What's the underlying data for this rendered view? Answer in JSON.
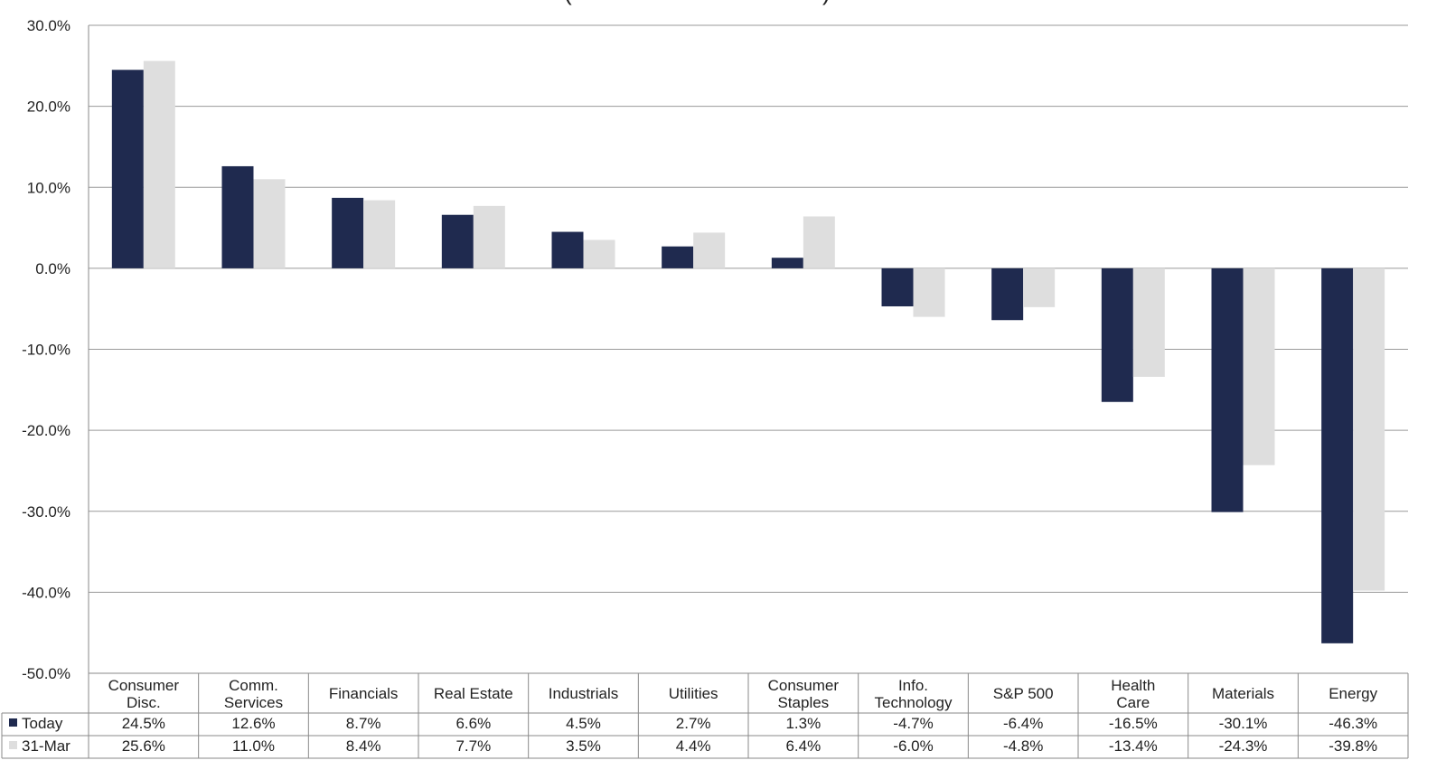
{
  "chart_data": {
    "type": "bar",
    "title": "",
    "xlabel": "",
    "ylabel": "",
    "ylim": [
      -50,
      30
    ],
    "yticks": [
      30,
      20,
      10,
      0,
      -10,
      -20,
      -30,
      -40,
      -50
    ],
    "ytick_labels": [
      "30.0%",
      "20.0%",
      "10.0%",
      "0.0%",
      "-10.0%",
      "-20.0%",
      "-30.0%",
      "-40.0%",
      "-50.0%"
    ],
    "grid": "horizontal",
    "legend": "table-left",
    "categories": [
      [
        "Consumer",
        "Disc."
      ],
      [
        "Comm.",
        "Services"
      ],
      [
        "Financials"
      ],
      [
        "Real Estate"
      ],
      [
        "Industrials"
      ],
      [
        "Utilities"
      ],
      [
        "Consumer",
        "Staples"
      ],
      [
        "Info.",
        "Technology"
      ],
      [
        "S&P 500"
      ],
      [
        "Health",
        "Care"
      ],
      [
        "Materials"
      ],
      [
        "Energy"
      ]
    ],
    "series": [
      {
        "name": "Today",
        "color": "#1f2a4f",
        "values": [
          24.5,
          12.6,
          8.7,
          6.6,
          4.5,
          2.7,
          1.3,
          -4.7,
          -6.4,
          -16.5,
          -30.1,
          -46.3
        ],
        "labels": [
          "24.5%",
          "12.6%",
          "8.7%",
          "6.6%",
          "4.5%",
          "2.7%",
          "1.3%",
          "-4.7%",
          "-6.4%",
          "-16.5%",
          "-30.1%",
          "-46.3%"
        ]
      },
      {
        "name": "31-Mar",
        "color": "#dedede",
        "values": [
          25.6,
          11.0,
          8.4,
          7.7,
          3.5,
          4.4,
          6.4,
          -6.0,
          -4.8,
          -13.4,
          -24.3,
          -39.8
        ],
        "labels": [
          "25.6%",
          "11.0%",
          "8.4%",
          "7.7%",
          "3.5%",
          "4.4%",
          "6.4%",
          "-6.0%",
          "-4.8%",
          "-13.4%",
          "-24.3%",
          "-39.8%"
        ]
      }
    ]
  }
}
